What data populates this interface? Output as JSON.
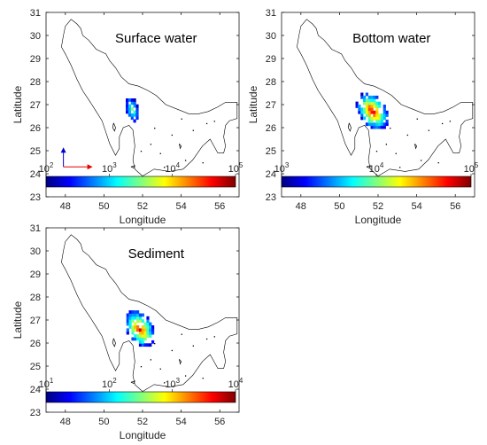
{
  "chart_data": [
    {
      "type": "heatmap",
      "title": "Surface water",
      "xlabel": "Longitude",
      "ylabel": "Latitude",
      "xlim": [
        47,
        57
      ],
      "ylim": [
        23,
        31
      ],
      "xticks": [
        48,
        50,
        52,
        54,
        56
      ],
      "yticks": [
        23,
        24,
        25,
        26,
        27,
        28,
        29,
        30,
        31
      ],
      "grid": false,
      "colorbar": {
        "scale": "log",
        "min": 100,
        "max": 100000,
        "ticks": [
          "10",
          "10",
          "10",
          "10"
        ],
        "exponents": [
          "2",
          "3",
          "4",
          "5"
        ]
      },
      "hotspot": {
        "lon_range": [
          51.0,
          51.8
        ],
        "lat_range": [
          26.1,
          27.4
        ],
        "peak_level": 0.55
      },
      "annotations": {
        "north_arrow": true,
        "east_arrow": true
      }
    },
    {
      "type": "heatmap",
      "title": "Bottom water",
      "xlabel": "Longitude",
      "ylabel": "Latitude",
      "xlim": [
        47,
        57
      ],
      "ylim": [
        23,
        31
      ],
      "xticks": [
        48,
        50,
        52,
        54,
        56
      ],
      "yticks": [
        23,
        24,
        25,
        26,
        27,
        28,
        29,
        30,
        31
      ],
      "grid": false,
      "colorbar": {
        "scale": "log",
        "min": 1000,
        "max": 100000,
        "ticks": [
          "10",
          "10",
          "10"
        ],
        "exponents": [
          "3",
          "4",
          "5"
        ]
      },
      "hotspot": {
        "lon_range": [
          50.7,
          52.6
        ],
        "lat_range": [
          25.7,
          27.6
        ],
        "peak_level": 0.95
      }
    },
    {
      "type": "heatmap",
      "title": "Sediment",
      "xlabel": "Longitude",
      "ylabel": "Latitude",
      "xlim": [
        47,
        57
      ],
      "ylim": [
        23,
        31
      ],
      "xticks": [
        48,
        50,
        52,
        54,
        56
      ],
      "yticks": [
        23,
        24,
        25,
        26,
        27,
        28,
        29,
        30,
        31
      ],
      "grid": false,
      "colorbar": {
        "scale": "log",
        "min": 10,
        "max": 10000,
        "ticks": [
          "10",
          "10",
          "10",
          "10"
        ],
        "exponents": [
          "1",
          "2",
          "3",
          "4"
        ]
      },
      "hotspot": {
        "lon_range": [
          50.9,
          52.7
        ],
        "lat_range": [
          25.6,
          27.5
        ],
        "peak_level": 0.92
      }
    }
  ],
  "colors": {
    "coast": "#000000",
    "axis": "#1a1a1a",
    "north_arrow": "#0000cc",
    "east_arrow": "#e60000",
    "colormap": [
      "#00007f",
      "#0000ff",
      "#007fff",
      "#00ffff",
      "#7fff7f",
      "#ffff00",
      "#ff7f00",
      "#ff0000",
      "#7f0000"
    ]
  }
}
